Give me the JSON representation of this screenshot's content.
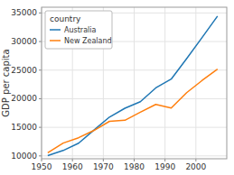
{
  "chart_data": {
    "type": "line",
    "ylabel": "GDP per capita",
    "legend_title": "country",
    "x": [
      1952,
      1957,
      1962,
      1967,
      1972,
      1977,
      1982,
      1987,
      1992,
      1997,
      2002,
      2007
    ],
    "series": [
      {
        "name": "Australia",
        "color": "#1f77b4",
        "values": [
          10040,
          10950,
          12217,
          14526,
          16789,
          18334,
          19477,
          21889,
          23425,
          26998,
          30688,
          34435
        ]
      },
      {
        "name": "New Zealand",
        "color": "#ff7f0e",
        "values": [
          10557,
          12247,
          13176,
          14464,
          16046,
          16234,
          17632,
          19007,
          18363,
          21050,
          23189,
          25185
        ]
      }
    ],
    "xlim": [
      1950,
      2010
    ],
    "ylim": [
      9500,
      36000
    ],
    "xticks": [
      1950,
      1960,
      1970,
      1980,
      1990,
      2000
    ],
    "yticks": [
      10000,
      15000,
      20000,
      25000,
      30000,
      35000
    ],
    "grid": true,
    "legend": "upper left"
  }
}
